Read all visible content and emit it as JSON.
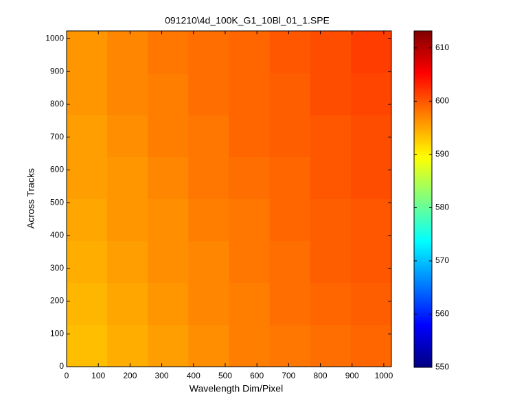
{
  "chart_data": {
    "type": "heatmap",
    "title": "091210\\4d_100K_G1_10Bl_01_1.SPE",
    "xlabel": "Wavelength Dim/Pixel",
    "ylabel": "Across Tracks",
    "colormap": "jet",
    "xbins": [
      0,
      128,
      256,
      384,
      512,
      640,
      768,
      896,
      1024
    ],
    "ybins": [
      0,
      128,
      256,
      384,
      512,
      640,
      768,
      896,
      1024
    ],
    "values": [
      [
        593.5,
        594.5,
        595.5,
        596.5,
        597.5,
        598.0,
        598.5,
        599.0
      ],
      [
        594.0,
        595.0,
        596.0,
        597.0,
        597.5,
        598.5,
        599.0,
        599.5
      ],
      [
        594.5,
        595.5,
        596.5,
        597.0,
        598.0,
        598.5,
        599.5,
        600.0
      ],
      [
        595.0,
        596.0,
        596.5,
        597.5,
        598.0,
        599.0,
        599.5,
        600.0
      ],
      [
        595.5,
        596.0,
        597.0,
        598.0,
        598.5,
        599.0,
        600.0,
        600.5
      ],
      [
        595.5,
        596.5,
        597.5,
        598.0,
        599.0,
        599.5,
        600.0,
        600.5
      ],
      [
        596.0,
        597.0,
        597.5,
        598.5,
        599.0,
        599.5,
        600.5,
        601.0
      ],
      [
        596.0,
        597.0,
        598.0,
        598.5,
        599.0,
        600.0,
        600.5,
        601.5
      ]
    ],
    "xlim": [
      0,
      1024
    ],
    "ylim": [
      0,
      1024
    ],
    "xticks": [
      0,
      100,
      200,
      300,
      400,
      500,
      600,
      700,
      800,
      900,
      1000
    ],
    "yticks": [
      0,
      100,
      200,
      300,
      400,
      500,
      600,
      700,
      800,
      900,
      1000
    ],
    "clim": [
      550,
      613.2
    ],
    "cticks": [
      550,
      560,
      570,
      580,
      590,
      600,
      610
    ]
  }
}
